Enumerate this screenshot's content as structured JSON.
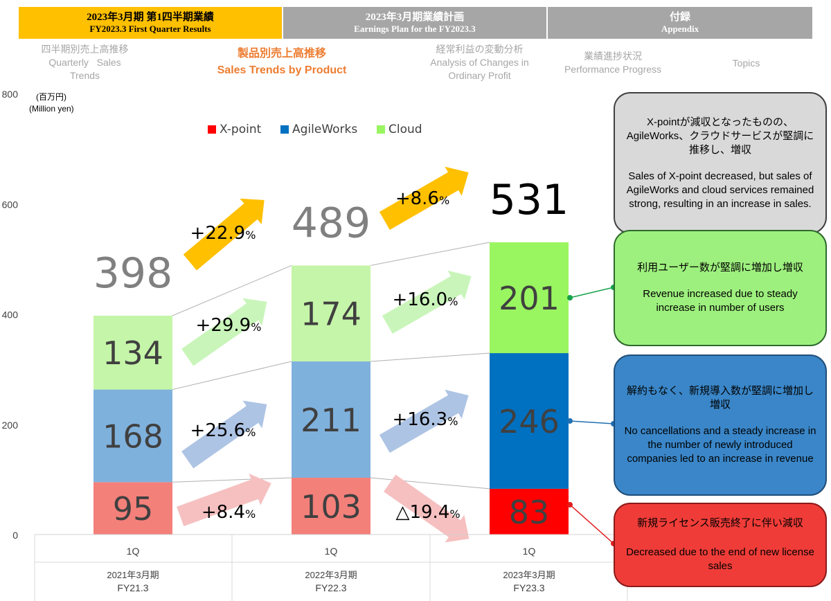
{
  "nav": {
    "tabs": [
      {
        "ja": "2023年3月期 第1四半期業績",
        "en": "FY2023.3  First Quarter Results"
      },
      {
        "ja": "2023年3月期業績計画",
        "en": "Earnings Plan for the FY2023.3"
      },
      {
        "ja": "付録",
        "en": "Appendix"
      }
    ],
    "subtabs": [
      {
        "ja": "四半期別売上高推移",
        "en1": "Quarterly   Sales",
        "en2": "Trends"
      },
      {
        "ja": "製品別売上高推移",
        "en1": "Sales Trends by Product"
      },
      {
        "ja": "経常利益の変動分析",
        "en1": "Analysis of Changes in",
        "en2": "Ordinary Profit"
      },
      {
        "ja": "業績進捗状況",
        "en1": "Performance Progress"
      },
      {
        "en1": "Topics"
      }
    ]
  },
  "colors": {
    "active_tab": "#ffc000",
    "inactive_tab": "#a6a6a6",
    "xpoint_past": "#f4807a",
    "xpoint_current": "#ff0000",
    "agile_past": "#7fb1dd",
    "agile_current": "#0070c0",
    "cloud_past": "#c5f5a8",
    "cloud_current": "#99f560",
    "growth_arrow": "#ffc000",
    "note_cloud": "#9ef07e",
    "note_agile": "#3a86c8",
    "note_xpoint": "#f03c38",
    "note_summary": "#d9d9d9"
  },
  "chart_data": {
    "type": "bar",
    "stacked": true,
    "unit_ja": "(百万円)",
    "unit_en": "(Million yen)",
    "ylim": [
      0,
      800
    ],
    "yticks": [
      "0",
      "200",
      "400",
      "600",
      "800"
    ],
    "categories": [
      {
        "quarter": "1Q",
        "period_ja": "2021年3月期",
        "period_en": "FY21.3"
      },
      {
        "quarter": "1Q",
        "period_ja": "2022年3月期",
        "period_en": "FY22.3"
      },
      {
        "quarter": "1Q",
        "period_ja": "2023年3月期",
        "period_en": "FY23.3"
      }
    ],
    "series": [
      {
        "name": "X-point",
        "values": [
          95,
          103,
          83
        ]
      },
      {
        "name": "AgileWorks",
        "values": [
          168,
          211,
          246
        ]
      },
      {
        "name": "Cloud",
        "values": [
          134,
          174,
          201
        ]
      }
    ],
    "totals": [
      398,
      489,
      531
    ],
    "legend_position": "top",
    "growth": {
      "total": [
        "+22.9",
        "+8.6"
      ],
      "cloud": [
        "+29.9",
        "+16.0"
      ],
      "agile": [
        "+25.6",
        "+16.3"
      ],
      "xpoint": [
        "+8.4",
        "△19.4"
      ],
      "unit": "%"
    }
  },
  "notes": {
    "summary_ja": "X-pointが減収となったものの、AgileWorks、クラウドサービスが堅調に推移し、増収",
    "summary_en": "Sales of X-point decreased, but sales of AgileWorks and cloud services remained strong, resulting in an increase in sales.",
    "cloud_ja": "利用ユーザー数が堅調に増加し増収",
    "cloud_en": "Revenue increased due to steady increase in number of users",
    "agile_ja": "解約もなく、新規導入数が堅調に増加し増収",
    "agile_en": "No cancellations and a steady increase in the number of newly introduced companies led to an increase in revenue",
    "xpoint_ja": "新規ライセンス販売終了に伴い減収",
    "xpoint_en": "Decreased due to the end of new license sales"
  }
}
